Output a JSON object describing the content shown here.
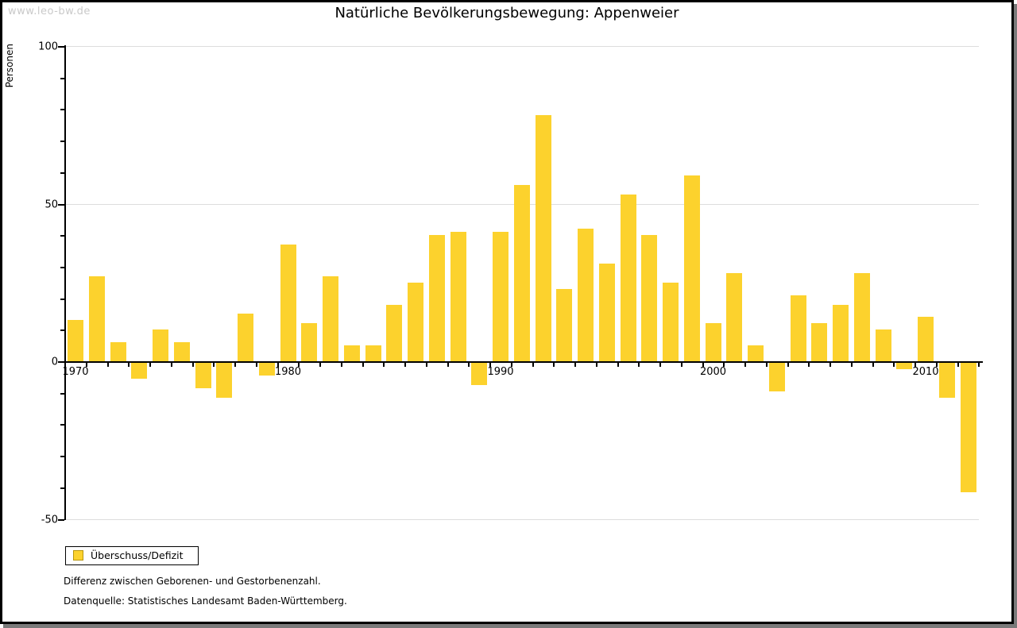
{
  "watermark": "www.leo-bw.de",
  "title": "Natürliche Bevölkerungsbewegung: Appenweier",
  "y_axis": {
    "label": "Personen",
    "major_ticks": [
      {
        "label": "100",
        "value": 100
      },
      {
        "label": "50",
        "value": 50
      },
      {
        "label": "0",
        "value": 0
      },
      {
        "label": "-50",
        "value": -50
      }
    ],
    "minor_tick_step": 10
  },
  "x_axis": {
    "labeled_years": [
      1970,
      1980,
      1990,
      2000,
      2010
    ]
  },
  "legend": {
    "label": "Überschuss/Defizit"
  },
  "notes": {
    "line1": "Differenz zwischen Geborenen- und Gestorbenenzahl.",
    "line2": "Datenquelle: Statistisches Landesamt Baden-Württemberg."
  },
  "colors": {
    "bar": "#FCD22D",
    "legend_swatch_border": "#B8960C",
    "grid": "#DDDDDD",
    "axis": "#000000",
    "watermark": "#C9C9C9",
    "frame_shadow": "#7A7A7A"
  },
  "chart_data": {
    "type": "bar",
    "title": "Natürliche Bevölkerungsbewegung: Appenweier",
    "xlabel": "",
    "ylabel": "Personen",
    "ylim": [
      -50,
      100
    ],
    "grid": "horizontal-at-major-ticks",
    "legend_position": "bottom-left",
    "series": [
      {
        "name": "Überschuss/Defizit",
        "x": [
          1970,
          1971,
          1972,
          1973,
          1974,
          1975,
          1976,
          1977,
          1978,
          1979,
          1980,
          1981,
          1982,
          1983,
          1984,
          1985,
          1986,
          1987,
          1988,
          1989,
          1990,
          1991,
          1992,
          1993,
          1994,
          1995,
          1996,
          1997,
          1998,
          1999,
          2000,
          2001,
          2002,
          2003,
          2004,
          2005,
          2006,
          2007,
          2008,
          2009,
          2010,
          2011,
          2012
        ],
        "values": [
          13,
          27,
          6,
          -5,
          10,
          6,
          -8,
          -11,
          15,
          -4,
          37,
          12,
          27,
          5,
          5,
          18,
          25,
          40,
          41,
          -7,
          41,
          56,
          78,
          23,
          42,
          31,
          53,
          40,
          25,
          59,
          12,
          28,
          5,
          -9,
          21,
          12,
          18,
          28,
          10,
          -2,
          14,
          -11,
          -41
        ]
      }
    ]
  }
}
